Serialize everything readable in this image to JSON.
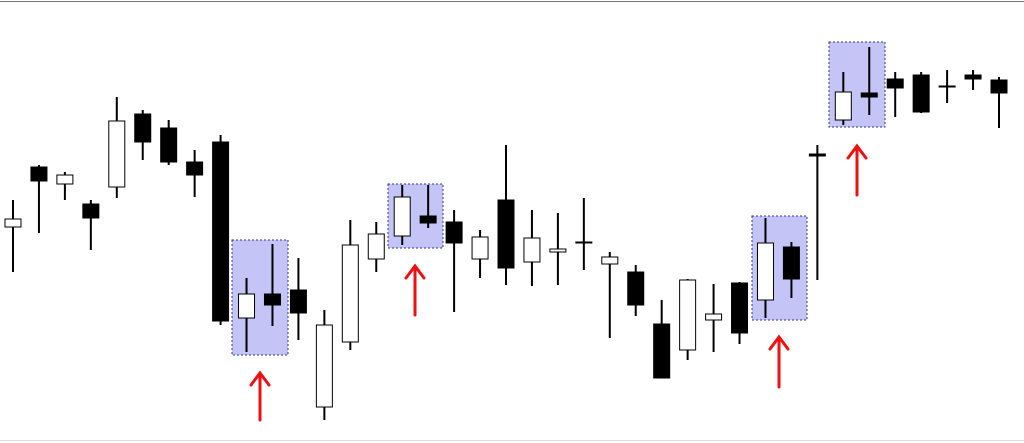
{
  "chart_data": {
    "type": "candlestick",
    "open": [
      216,
      276,
      259,
      239,
      256,
      329,
      315,
      281,
      301,
      125,
      149,
      153,
      36,
      101,
      184,
      207,
      227,
      221,
      184,
      243,
      181,
      191,
      201,
      179,
      171,
      119,
      93,
      123,
      160,
      143,
      196,
      289,
      323,
      350,
      364,
      368,
      356,
      368,
      363
    ],
    "high": [
      243,
      278,
      271,
      243,
      346,
      333,
      323,
      293,
      308,
      165,
      199,
      185,
      133,
      223,
      221,
      258,
      258,
      233,
      213,
      298,
      233,
      230,
      245,
      191,
      178,
      143,
      164,
      159,
      161,
      225,
      201,
      298,
      371,
      396,
      371,
      371,
      373,
      373,
      366
    ],
    "low": [
      171,
      210,
      243,
      193,
      245,
      283,
      278,
      246,
      118,
      91,
      117,
      103,
      23,
      93,
      171,
      198,
      215,
      131,
      165,
      158,
      157,
      158,
      173,
      105,
      127,
      65,
      83,
      91,
      99,
      125,
      145,
      163,
      318,
      328,
      326,
      330,
      340,
      353,
      315
    ],
    "close": [
      224,
      262,
      268,
      225,
      322,
      301,
      281,
      268,
      122,
      149,
      138,
      130,
      118,
      198,
      209,
      246,
      220,
      200,
      206,
      175,
      205,
      194,
      200,
      186,
      138,
      65,
      163,
      129,
      110,
      200,
      164,
      287,
      351,
      346,
      355,
      331,
      357,
      364,
      350
    ],
    "up_color": "#ffffff",
    "down_color": "#000000",
    "wick_color": "#000000",
    "ylim": [
      0,
      443
    ]
  }
}
